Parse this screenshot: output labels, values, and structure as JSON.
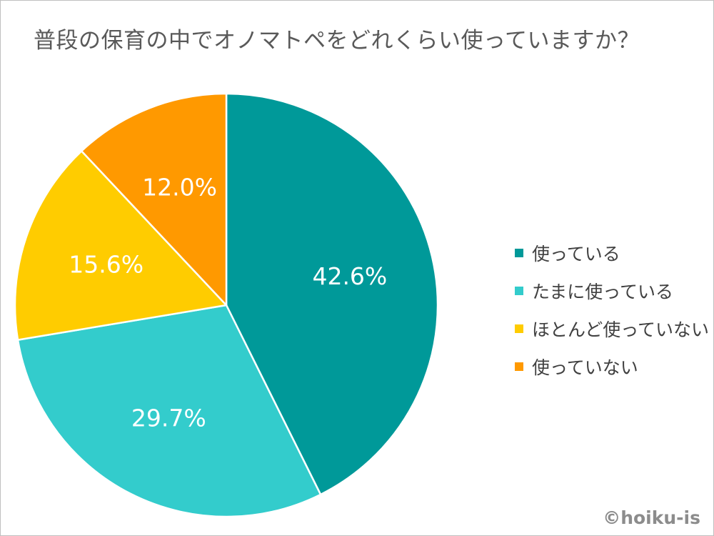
{
  "chart_data": {
    "type": "pie",
    "title": "普段の保育の中でオノマトペをどれくらい使っていますか？",
    "categories": [
      "使っている",
      "たまに使っている",
      "ほとんど使っていない",
      "使っていない"
    ],
    "values": [
      42.6,
      29.7,
      15.6,
      12.0
    ],
    "data_labels": [
      "42.6%",
      "29.7%",
      "15.6%",
      "12.0%"
    ],
    "colors": [
      "#009999",
      "#33CCCC",
      "#FFCC00",
      "#FF9900"
    ],
    "label_color": "#FFFFFF",
    "start": "12 o'clock, clockwise",
    "legend_placement": "right"
  },
  "credit": "©hoiku-is"
}
